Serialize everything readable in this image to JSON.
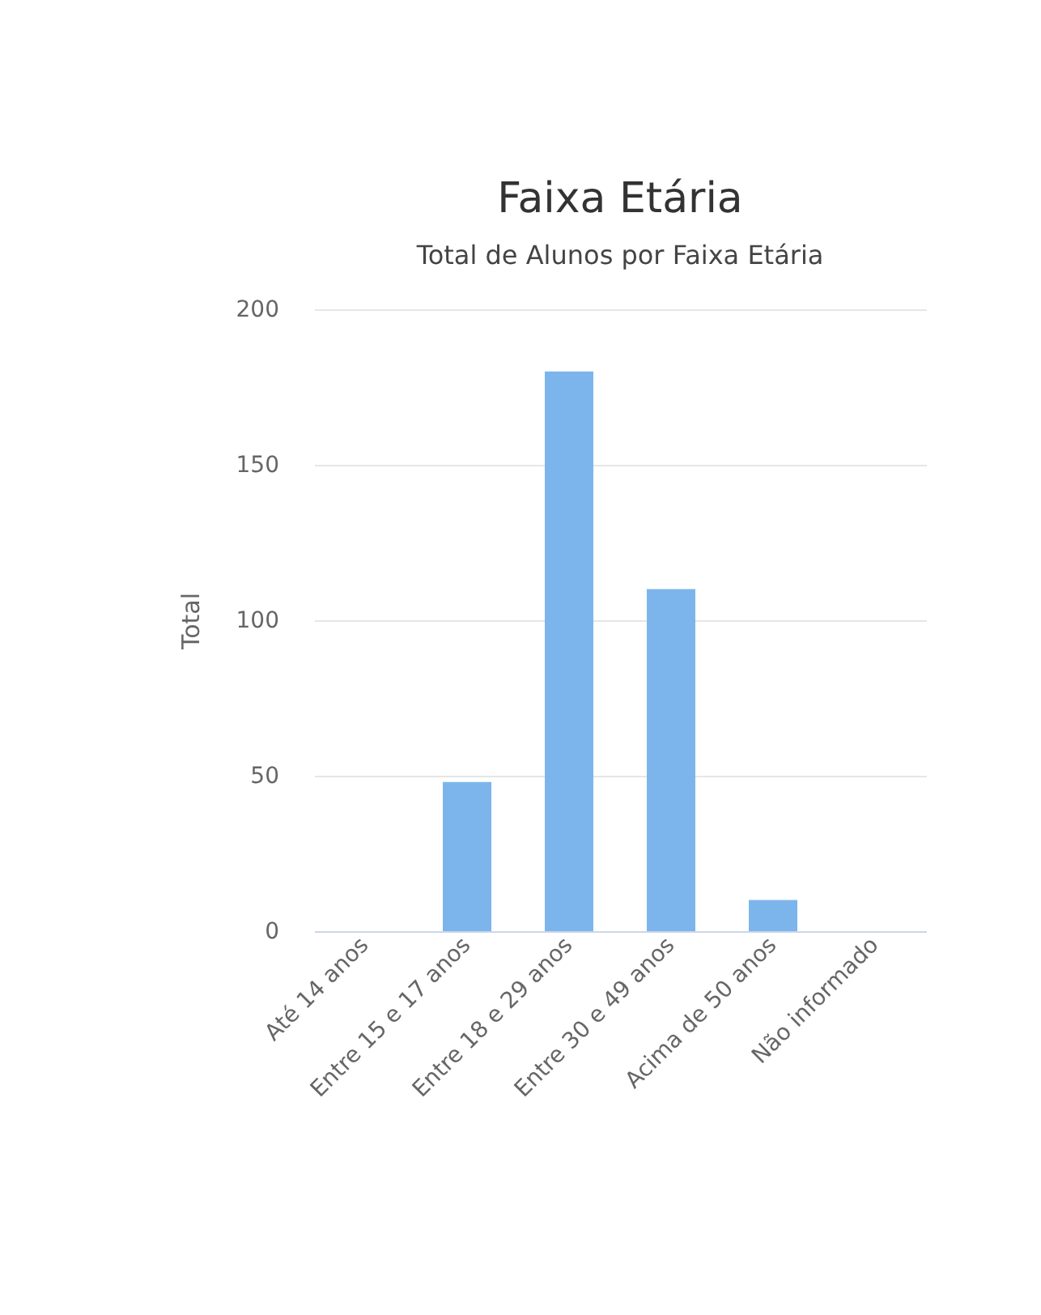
{
  "chart_data": {
    "type": "bar",
    "title": "Faixa Etária",
    "subtitle": "Total de Alunos por Faixa Etária",
    "ylabel": "Total",
    "categories": [
      "Até 14 anos",
      "Entre 15 e 17 anos",
      "Entre 18 e 29 anos",
      "Entre 30 e 49 anos",
      "Acima de 50 anos",
      "Não informado"
    ],
    "values": [
      0,
      48,
      180,
      110,
      10,
      0
    ],
    "color": "#7cb5ec",
    "ylim": [
      0,
      200
    ],
    "yticks": [
      0,
      50,
      100,
      150,
      200
    ],
    "grid": "y"
  }
}
